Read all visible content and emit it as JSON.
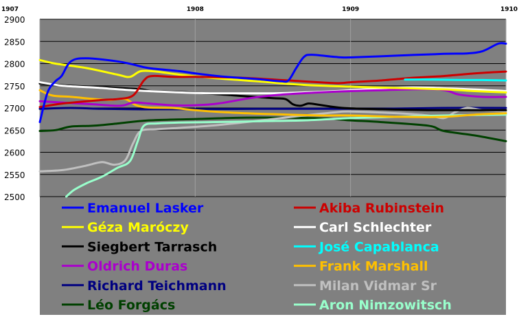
{
  "chart_data": {
    "type": "line",
    "title": "",
    "xlabel": "",
    "ylabel": "",
    "x_ticks": [
      "1907",
      "1908",
      "1909",
      "1910"
    ],
    "xlim": [
      1907,
      1910
    ],
    "y_ticks": [
      "2900",
      "2850",
      "2800",
      "2750",
      "2700",
      "2650",
      "2600",
      "2550",
      "2500"
    ],
    "ylim": [
      2500,
      2900
    ],
    "grid": true,
    "plot_background": "#808080",
    "legend_placement": "inside-bottom",
    "series": [
      {
        "name": "Emanuel Lasker",
        "color": "#0000FF",
        "points": [
          [
            1907.0,
            2668
          ],
          [
            1907.05,
            2735
          ],
          [
            1907.1,
            2760
          ],
          [
            1907.14,
            2772
          ],
          [
            1907.2,
            2805
          ],
          [
            1907.3,
            2812
          ],
          [
            1907.5,
            2805
          ],
          [
            1907.6,
            2798
          ],
          [
            1907.7,
            2790
          ],
          [
            1907.9,
            2783
          ],
          [
            1908.0,
            2778
          ],
          [
            1908.2,
            2770
          ],
          [
            1908.4,
            2765
          ],
          [
            1908.55,
            2760
          ],
          [
            1908.6,
            2762
          ],
          [
            1908.65,
            2790
          ],
          [
            1908.7,
            2815
          ],
          [
            1908.75,
            2820
          ],
          [
            1908.9,
            2815
          ],
          [
            1909.0,
            2814
          ],
          [
            1909.3,
            2818
          ],
          [
            1909.6,
            2822
          ],
          [
            1909.75,
            2823
          ],
          [
            1909.85,
            2828
          ],
          [
            1909.95,
            2845
          ],
          [
            1910.0,
            2845
          ]
        ]
      },
      {
        "name": "Akiba Rubinstein",
        "color": "#CC0000",
        "points": [
          [
            1907.0,
            2702
          ],
          [
            1907.15,
            2710
          ],
          [
            1907.4,
            2718
          ],
          [
            1907.5,
            2720
          ],
          [
            1907.6,
            2728
          ],
          [
            1907.67,
            2762
          ],
          [
            1907.72,
            2772
          ],
          [
            1907.85,
            2770
          ],
          [
            1908.0,
            2770
          ],
          [
            1908.3,
            2768
          ],
          [
            1908.6,
            2762
          ],
          [
            1908.9,
            2756
          ],
          [
            1909.0,
            2758
          ],
          [
            1909.2,
            2762
          ],
          [
            1909.4,
            2768
          ],
          [
            1909.6,
            2772
          ],
          [
            1909.8,
            2778
          ],
          [
            1910.0,
            2782
          ]
        ]
      },
      {
        "name": "Géza Maróczy",
        "color": "#FFFF00",
        "points": [
          [
            1907.0,
            2808
          ],
          [
            1907.1,
            2800
          ],
          [
            1907.3,
            2790
          ],
          [
            1907.5,
            2775
          ],
          [
            1907.58,
            2770
          ],
          [
            1907.65,
            2783
          ],
          [
            1907.75,
            2782
          ],
          [
            1907.9,
            2775
          ],
          [
            1908.1,
            2768
          ],
          [
            1908.4,
            2760
          ],
          [
            1908.7,
            2752
          ],
          [
            1909.0,
            2748
          ],
          [
            1909.3,
            2745
          ],
          [
            1909.6,
            2742
          ],
          [
            1909.8,
            2738
          ],
          [
            1910.0,
            2735
          ]
        ]
      },
      {
        "name": "Carl Schlechter",
        "color": "#FFFFFF",
        "points": [
          [
            1907.0,
            2758
          ],
          [
            1907.15,
            2750
          ],
          [
            1907.35,
            2746
          ],
          [
            1907.6,
            2740
          ],
          [
            1907.9,
            2735
          ],
          [
            1908.1,
            2733
          ],
          [
            1908.3,
            2733
          ],
          [
            1908.5,
            2733
          ],
          [
            1908.7,
            2735
          ],
          [
            1908.9,
            2738
          ],
          [
            1909.1,
            2742
          ],
          [
            1909.4,
            2746
          ],
          [
            1909.7,
            2743
          ],
          [
            1910.0,
            2738
          ]
        ]
      },
      {
        "name": "Siegbert Tarrasch",
        "color": "#000000",
        "points": [
          [
            1907.0,
            2755
          ],
          [
            1907.2,
            2750
          ],
          [
            1907.45,
            2746
          ],
          [
            1907.65,
            2742
          ],
          [
            1907.72,
            2738
          ],
          [
            1907.9,
            2736
          ],
          [
            1908.1,
            2732
          ],
          [
            1908.3,
            2727
          ],
          [
            1908.5,
            2722
          ],
          [
            1908.58,
            2720
          ],
          [
            1908.63,
            2708
          ],
          [
            1908.68,
            2705
          ],
          [
            1908.73,
            2710
          ],
          [
            1908.8,
            2707
          ],
          [
            1908.95,
            2700
          ],
          [
            1909.2,
            2697
          ],
          [
            1909.5,
            2695
          ],
          [
            1910.0,
            2695
          ]
        ]
      },
      {
        "name": "José Capablanca",
        "color": "#00FFFF",
        "points": [
          [
            1909.35,
            2764
          ],
          [
            1909.5,
            2764
          ],
          [
            1909.7,
            2763
          ],
          [
            1909.85,
            2763
          ],
          [
            1910.0,
            2762
          ]
        ]
      },
      {
        "name": "Oldrich Duras",
        "color": "#AA00CC",
        "points": [
          [
            1907.0,
            2715
          ],
          [
            1907.15,
            2712
          ],
          [
            1907.35,
            2708
          ],
          [
            1907.52,
            2705
          ],
          [
            1907.6,
            2712
          ],
          [
            1907.7,
            2710
          ],
          [
            1907.85,
            2706
          ],
          [
            1908.0,
            2706
          ],
          [
            1908.15,
            2710
          ],
          [
            1908.35,
            2722
          ],
          [
            1908.55,
            2730
          ],
          [
            1908.8,
            2735
          ],
          [
            1909.0,
            2738
          ],
          [
            1909.2,
            2740
          ],
          [
            1909.4,
            2742
          ],
          [
            1909.55,
            2742
          ],
          [
            1909.63,
            2738
          ],
          [
            1909.7,
            2730
          ],
          [
            1909.85,
            2725
          ],
          [
            1910.0,
            2725
          ]
        ]
      },
      {
        "name": "Frank Marshall",
        "color": "#FFC000",
        "points": [
          [
            1907.0,
            2740
          ],
          [
            1907.08,
            2728
          ],
          [
            1907.2,
            2725
          ],
          [
            1907.35,
            2720
          ],
          [
            1907.45,
            2718
          ],
          [
            1907.55,
            2720
          ],
          [
            1907.62,
            2706
          ],
          [
            1907.7,
            2701
          ],
          [
            1907.85,
            2700
          ],
          [
            1908.0,
            2695
          ],
          [
            1908.2,
            2690
          ],
          [
            1908.4,
            2687
          ],
          [
            1908.6,
            2685
          ],
          [
            1908.8,
            2683
          ],
          [
            1909.0,
            2683
          ],
          [
            1909.3,
            2680
          ],
          [
            1909.6,
            2680
          ],
          [
            1909.8,
            2685
          ],
          [
            1910.0,
            2688
          ]
        ]
      },
      {
        "name": "Richard Teichmann",
        "color": "#000080",
        "points": [
          [
            1907.0,
            2698
          ],
          [
            1907.2,
            2700
          ],
          [
            1907.4,
            2698
          ],
          [
            1907.6,
            2697
          ],
          [
            1907.8,
            2697
          ],
          [
            1908.0,
            2697
          ],
          [
            1908.4,
            2698
          ],
          [
            1908.8,
            2698
          ],
          [
            1909.2,
            2698
          ],
          [
            1909.6,
            2700
          ],
          [
            1910.0,
            2700
          ]
        ]
      },
      {
        "name": "Milan Vidmar Sr",
        "color": "#C0C0C0",
        "points": [
          [
            1907.0,
            2557
          ],
          [
            1907.15,
            2560
          ],
          [
            1907.3,
            2570
          ],
          [
            1907.4,
            2578
          ],
          [
            1907.48,
            2572
          ],
          [
            1907.55,
            2582
          ],
          [
            1907.6,
            2620
          ],
          [
            1907.65,
            2648
          ],
          [
            1907.75,
            2652
          ],
          [
            1907.9,
            2655
          ],
          [
            1908.1,
            2660
          ],
          [
            1908.3,
            2667
          ],
          [
            1908.5,
            2675
          ],
          [
            1908.7,
            2683
          ],
          [
            1908.9,
            2690
          ],
          [
            1909.0,
            2692
          ],
          [
            1909.3,
            2688
          ],
          [
            1909.5,
            2683
          ],
          [
            1909.6,
            2677
          ],
          [
            1909.67,
            2690
          ],
          [
            1909.75,
            2700
          ],
          [
            1909.85,
            2695
          ],
          [
            1910.0,
            2692
          ]
        ]
      },
      {
        "name": "Léo Forgács",
        "color": "#004000",
        "points": [
          [
            1907.0,
            2648
          ],
          [
            1907.1,
            2650
          ],
          [
            1907.2,
            2658
          ],
          [
            1907.35,
            2660
          ],
          [
            1907.5,
            2665
          ],
          [
            1907.7,
            2672
          ],
          [
            1908.0,
            2675
          ],
          [
            1908.3,
            2678
          ],
          [
            1908.6,
            2678
          ],
          [
            1908.85,
            2676
          ],
          [
            1909.0,
            2672
          ],
          [
            1909.2,
            2668
          ],
          [
            1909.5,
            2660
          ],
          [
            1909.6,
            2648
          ],
          [
            1909.8,
            2638
          ],
          [
            1910.0,
            2625
          ]
        ]
      },
      {
        "name": "Aron Nimzowitsch",
        "color": "#99FFCC",
        "points": [
          [
            1907.17,
            2500
          ],
          [
            1907.22,
            2515
          ],
          [
            1907.3,
            2530
          ],
          [
            1907.4,
            2545
          ],
          [
            1907.5,
            2565
          ],
          [
            1907.58,
            2580
          ],
          [
            1907.63,
            2625
          ],
          [
            1907.67,
            2660
          ],
          [
            1907.75,
            2665
          ],
          [
            1907.9,
            2667
          ],
          [
            1908.1,
            2668
          ],
          [
            1908.4,
            2670
          ],
          [
            1908.7,
            2672
          ],
          [
            1909.0,
            2677
          ],
          [
            1909.3,
            2680
          ],
          [
            1909.6,
            2683
          ],
          [
            1910.0,
            2685
          ]
        ]
      }
    ]
  }
}
